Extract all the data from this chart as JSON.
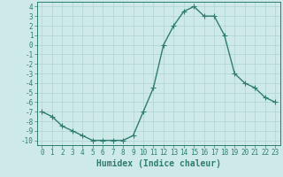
{
  "x": [
    0,
    1,
    2,
    3,
    4,
    5,
    6,
    7,
    8,
    9,
    10,
    11,
    12,
    13,
    14,
    15,
    16,
    17,
    18,
    19,
    20,
    21,
    22,
    23
  ],
  "y": [
    -7,
    -7.5,
    -8.5,
    -9,
    -9.5,
    -10,
    -10,
    -10,
    -10,
    -9.5,
    -7,
    -4.5,
    0,
    2,
    3.5,
    4,
    3,
    3,
    1,
    -3,
    -4,
    -4.5,
    -5.5,
    -6
  ],
  "xlabel": "Humidex (Indice chaleur)",
  "line_color": "#2e7d6e",
  "marker": "+",
  "marker_size": 4,
  "bg_color": "#ceeae8",
  "grid_color": "#aed4d1",
  "ylim": [
    -10.5,
    4.5
  ],
  "xlim": [
    -0.5,
    23.5
  ],
  "yticks": [
    -10,
    -9,
    -8,
    -7,
    -6,
    -5,
    -4,
    -3,
    -2,
    -1,
    0,
    1,
    2,
    3,
    4
  ],
  "xticks": [
    0,
    1,
    2,
    3,
    4,
    5,
    6,
    7,
    8,
    9,
    10,
    11,
    12,
    13,
    14,
    15,
    16,
    17,
    18,
    19,
    20,
    21,
    22,
    23
  ],
  "tick_fontsize": 5.5,
  "xlabel_fontsize": 7,
  "linewidth": 1.0,
  "spine_color": "#2e7d6e"
}
